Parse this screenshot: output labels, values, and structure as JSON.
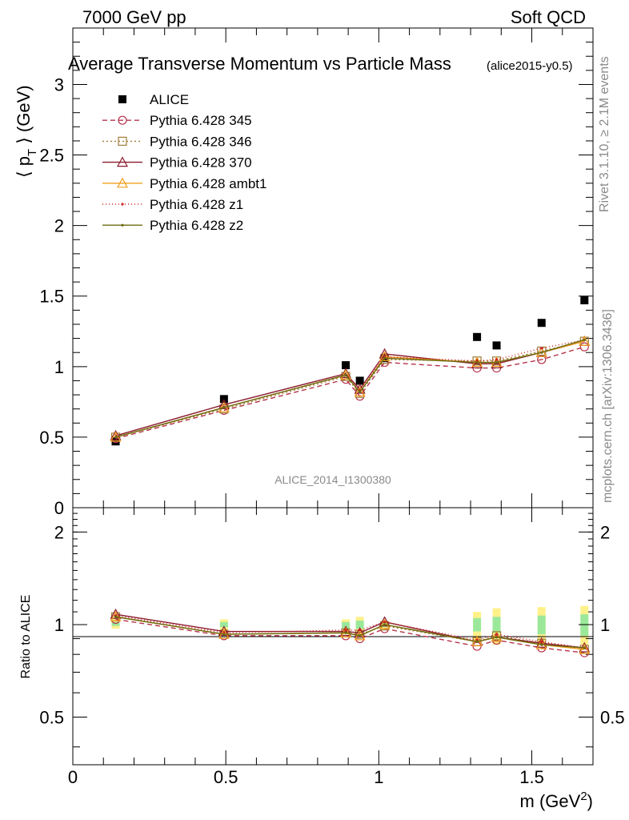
{
  "header": {
    "left": "7000 GeV pp",
    "right": "Soft QCD"
  },
  "side_labels": {
    "rivet": "Rivet 3.1.10, ≥ 2.1M events",
    "mcplots": "mcplots.cern.ch [arXiv:1306.3436]"
  },
  "chart_data": [
    {
      "type": "scatter",
      "title": "Average Transverse Momentum vs Particle Mass",
      "subtitle": "(alice2015-y0.5)",
      "watermark": "ALICE_2014_I1300380",
      "ylabel_main": "⟨ p",
      "ylabel_sub": "T",
      "ylabel_tail": " ⟩ (GeV)",
      "xlim": [
        0,
        1.7
      ],
      "ylim": [
        0,
        3.4
      ],
      "yticks": [
        0,
        0.5,
        1,
        1.5,
        2,
        2.5,
        3
      ],
      "ytick_labels": [
        "0",
        "0.5",
        "1",
        "1.5",
        "2",
        "2.5",
        "3"
      ],
      "legend_position": "top-left",
      "x": [
        0.14,
        0.494,
        0.892,
        0.938,
        1.019,
        1.321,
        1.385,
        1.532,
        1.672
      ],
      "series": [
        {
          "name": "ALICE",
          "color": "#000000",
          "marker": "square",
          "dash": "none",
          "values": [
            0.47,
            0.77,
            1.01,
            0.9,
            1.06,
            1.21,
            1.15,
            1.31,
            1.47
          ]
        },
        {
          "name": "Pythia 6.428 345",
          "color": "#b5344b",
          "marker": "circle",
          "dash": "6,4",
          "values": [
            0.49,
            0.69,
            0.91,
            0.79,
            1.03,
            0.99,
            0.99,
            1.05,
            1.14
          ]
        },
        {
          "name": "Pythia 6.428 346",
          "color": "#a07d3a",
          "marker": "square-open",
          "dash": "2,3",
          "values": [
            0.5,
            0.7,
            0.93,
            0.81,
            1.05,
            1.04,
            1.04,
            1.11,
            1.18
          ]
        },
        {
          "name": "Pythia 6.428 370",
          "color": "#8b1a2e",
          "marker": "triangle",
          "dash": "none",
          "values": [
            0.51,
            0.73,
            0.95,
            0.84,
            1.09,
            1.02,
            1.02,
            1.1,
            1.18
          ]
        },
        {
          "name": "Pythia 6.428 ambt1",
          "color": "#f0a020",
          "marker": "triangle",
          "dash": "none",
          "values": [
            0.5,
            0.71,
            0.94,
            0.82,
            1.07,
            1.03,
            1.03,
            1.1,
            1.18
          ]
        },
        {
          "name": "Pythia 6.428 z1",
          "color": "#cc2222",
          "marker": "dot",
          "dash": "1,3",
          "values": [
            0.5,
            0.71,
            0.94,
            0.83,
            1.07,
            1.04,
            1.05,
            1.13,
            1.19
          ]
        },
        {
          "name": "Pythia 6.428 z2",
          "color": "#6b6b10",
          "marker": "dot",
          "dash": "none",
          "values": [
            0.5,
            0.71,
            0.94,
            0.82,
            1.06,
            1.03,
            1.03,
            1.1,
            1.19
          ]
        }
      ]
    },
    {
      "type": "line",
      "ylabel": "Ratio to ALICE",
      "xlabel": "m (GeV",
      "xlabel_sup": "2",
      "xlabel_tail": ")",
      "xlim": [
        0,
        1.7
      ],
      "ylim": [
        0.35,
        2.4
      ],
      "xticks": [
        0,
        0.5,
        1,
        1.5
      ],
      "xtick_labels": [
        "0",
        "0.5",
        "1",
        "1.5"
      ],
      "yticks": [
        0.5,
        1,
        2
      ],
      "ytick_labels": [
        "0.5",
        "1",
        "2"
      ],
      "x": [
        0.14,
        0.494,
        0.892,
        0.938,
        1.019,
        1.321,
        1.385,
        1.532,
        1.672
      ],
      "band_yellow": [
        [
          0.97,
          1.05
        ],
        [
          0.95,
          1.04
        ],
        [
          0.93,
          1.04
        ],
        [
          0.92,
          1.06
        ],
        [
          0.96,
          1.03
        ],
        [
          0.87,
          1.1
        ],
        [
          0.86,
          1.13
        ],
        [
          0.86,
          1.14
        ],
        [
          0.86,
          1.15
        ]
      ],
      "band_green": [
        [
          0.99,
          1.02
        ],
        [
          0.98,
          1.02
        ],
        [
          0.97,
          1.02
        ],
        [
          0.97,
          1.03
        ],
        [
          0.98,
          1.02
        ],
        [
          0.95,
          1.05
        ],
        [
          0.94,
          1.06
        ],
        [
          0.93,
          1.07
        ],
        [
          0.92,
          1.08
        ]
      ],
      "series": [
        {
          "name": "Pythia 6.428 345",
          "color": "#b5344b",
          "marker": "circle",
          "dash": "6,4",
          "values": [
            1.04,
            0.92,
            0.92,
            0.9,
            0.97,
            0.85,
            0.89,
            0.84,
            0.81
          ]
        },
        {
          "name": "Pythia 6.428 346",
          "color": "#a07d3a",
          "marker": "square-open",
          "dash": "2,3",
          "values": [
            1.06,
            0.93,
            0.94,
            0.93,
            0.99,
            0.88,
            0.92,
            0.87,
            0.83
          ]
        },
        {
          "name": "Pythia 6.428 370",
          "color": "#8b1a2e",
          "marker": "triangle",
          "dash": "none",
          "values": [
            1.08,
            0.95,
            0.95,
            0.94,
            1.02,
            0.88,
            0.91,
            0.87,
            0.84
          ]
        },
        {
          "name": "Pythia 6.428 ambt1",
          "color": "#f0a020",
          "marker": "triangle",
          "dash": "none",
          "values": [
            1.06,
            0.93,
            0.94,
            0.92,
            1.0,
            0.88,
            0.91,
            0.86,
            0.83
          ]
        },
        {
          "name": "Pythia 6.428 z1",
          "color": "#cc2222",
          "marker": "dot",
          "dash": "1,3",
          "values": [
            1.07,
            0.94,
            0.96,
            0.96,
            1.02,
            0.89,
            0.93,
            0.88,
            0.84
          ]
        },
        {
          "name": "Pythia 6.428 z2",
          "color": "#6b6b10",
          "marker": "dot",
          "dash": "none",
          "values": [
            1.06,
            0.93,
            0.94,
            0.92,
            1.0,
            0.88,
            0.91,
            0.86,
            0.84
          ]
        }
      ]
    }
  ]
}
